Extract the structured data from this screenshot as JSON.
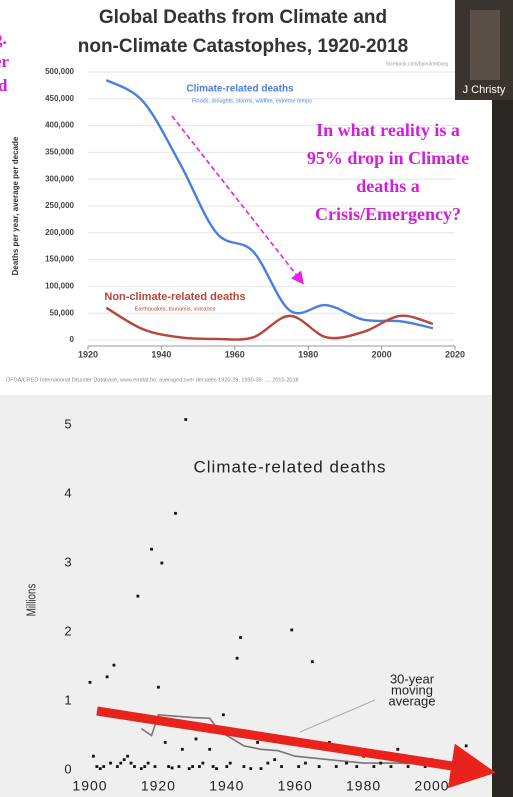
{
  "cropped_text": [
    "g.",
    "er",
    "d"
  ],
  "video_label": "J Christy",
  "chart_data": [
    {
      "type": "line",
      "title": [
        "Global Deaths from Climate and",
        "non-Climate Catastophes, 1920-2018"
      ],
      "source_credit": "facebook.com/bjornlomborg",
      "ylabel": "Deaths per year, average per decade",
      "footnote": "OFDA/CRED International Disaster Database, www.emdat.be, averaged over decades 1920-29, 1930-39, ..., 2010-2018",
      "x": [
        1925,
        1935,
        1945,
        1955,
        1965,
        1975,
        1985,
        1995,
        2005,
        2014
      ],
      "series": [
        {
          "name": "Climate-related deaths",
          "note": "Floods, droughts, storms, wildfire, extreme temps",
          "color": "#4a7fe0",
          "values": [
            485000,
            445000,
            330000,
            200000,
            165000,
            55000,
            65000,
            38000,
            35000,
            22000
          ]
        },
        {
          "name": "Non-climate-related deaths",
          "note": "Earthquakes, tsunamis, volcanos",
          "color": "#b5473b",
          "values": [
            60000,
            20000,
            5000,
            2000,
            5000,
            45000,
            5000,
            15000,
            45000,
            30000
          ]
        }
      ],
      "xlim": [
        1920,
        2020
      ],
      "xticks": [
        1920,
        1940,
        1960,
        1980,
        2000,
        2020
      ],
      "ylim": [
        0,
        500000
      ],
      "yticks": [
        0,
        {
          "value": 50000,
          "label": "50,000"
        },
        {
          "value": 100000,
          "label": "100,000"
        },
        {
          "value": 150000,
          "label": "150,000"
        },
        {
          "value": 200000,
          "label": "200,000"
        },
        {
          "value": 250000,
          "label": "250,000"
        },
        {
          "value": 300000,
          "label": "300,000"
        },
        {
          "value": 350000,
          "label": "350,000"
        },
        {
          "value": 400000,
          "label": "400,000"
        },
        {
          "value": 450000,
          "label": "450,000"
        },
        {
          "value": 500000,
          "label": "500,000"
        }
      ],
      "annotation": [
        "In what reality is a",
        "95% drop in Climate",
        "deaths a",
        "Crisis/Emergency?"
      ]
    },
    {
      "type": "scatter",
      "title": "Climate-related deaths",
      "ylabel": "Millions",
      "x": [
        1900,
        1901,
        1902,
        1903,
        1904,
        1905,
        1906,
        1907,
        1908,
        1909,
        1910,
        1911,
        1912,
        1913,
        1914,
        1915,
        1916,
        1917,
        1918,
        1919,
        1920,
        1921,
        1922,
        1923,
        1924,
        1925,
        1926,
        1927,
        1928,
        1929,
        1930,
        1931,
        1932,
        1933,
        1935,
        1936,
        1937,
        1939,
        1940,
        1941,
        1943,
        1944,
        1945,
        1947,
        1949,
        1950,
        1952,
        1954,
        1956,
        1959,
        1961,
        1963,
        1965,
        1967,
        1970,
        1972,
        1975,
        1978,
        1980,
        1983,
        1985,
        1988,
        1990,
        1993,
        1995,
        1998,
        2000,
        2003,
        2005,
        2008,
        2010
      ],
      "values": [
        1.27,
        0.2,
        0.05,
        0.02,
        0.05,
        1.35,
        0.1,
        1.52,
        0.05,
        0.1,
        0.15,
        0.2,
        0.1,
        0.05,
        2.52,
        0.02,
        0.05,
        0.1,
        3.2,
        0.05,
        1.2,
        3.0,
        0.4,
        0.05,
        0.03,
        3.72,
        0.05,
        0.3,
        5.08,
        0.02,
        0.05,
        0.45,
        0.05,
        0.1,
        0.3,
        0.05,
        0.02,
        0.8,
        0.05,
        0.1,
        1.62,
        1.92,
        0.05,
        0.02,
        0.4,
        0.02,
        0.1,
        0.15,
        0.05,
        2.03,
        0.05,
        0.1,
        1.57,
        0.05,
        0.4,
        0.05,
        0.1,
        0.05,
        0.2,
        0.05,
        0.1,
        0.05,
        0.3,
        0.05,
        0.1,
        0.05,
        0.15,
        0.05,
        0.1,
        0.05,
        0.35
      ],
      "color": "#111111",
      "moving_average": {
        "label": [
          "30-year",
          "moving",
          "average"
        ],
        "color": "#777777",
        "x": [
          1915,
          1918,
          1920,
          1925,
          1930,
          1935,
          1938,
          1940,
          1945,
          1950,
          1955,
          1960,
          1970,
          1980,
          1990,
          2000
        ],
        "values": [
          0.6,
          0.5,
          0.8,
          0.78,
          0.76,
          0.75,
          0.55,
          0.5,
          0.35,
          0.3,
          0.28,
          0.2,
          0.15,
          0.1,
          0.1,
          0.08
        ]
      },
      "xlim": [
        1897,
        2013
      ],
      "xticks": [
        1900,
        1920,
        1940,
        1960,
        1980,
        2000
      ],
      "ylim": [
        0,
        5.2
      ],
      "yticks": [
        0,
        1,
        2,
        3,
        4,
        5
      ]
    }
  ]
}
